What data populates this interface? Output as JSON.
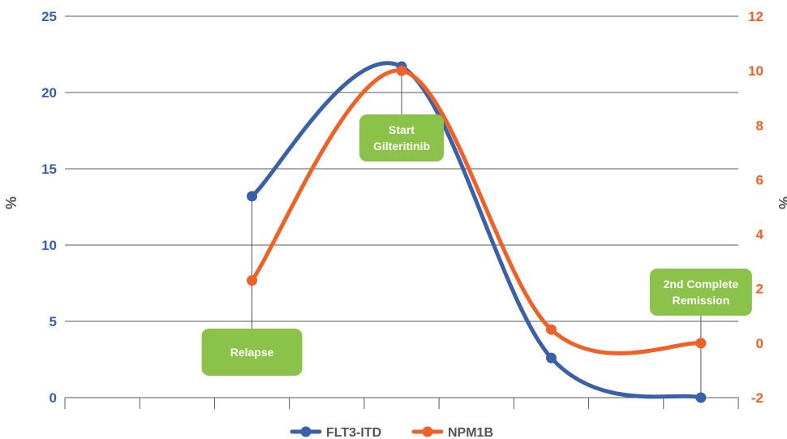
{
  "chart_data": {
    "type": "line",
    "x": [
      1,
      2,
      3,
      4,
      5,
      6,
      7,
      8,
      9
    ],
    "series": [
      {
        "name": "FLT3-ITD",
        "axis": "left",
        "color": "#3a60a8",
        "points": [
          [
            3,
            13.2
          ],
          [
            5,
            21.7
          ],
          [
            7,
            2.6
          ],
          [
            9,
            0.0
          ]
        ]
      },
      {
        "name": "NPM1B",
        "axis": "right",
        "color": "#ee6128",
        "points": [
          [
            3,
            2.3
          ],
          [
            5,
            10.0
          ],
          [
            7,
            0.5
          ],
          [
            9,
            0.0
          ]
        ]
      }
    ],
    "y_left": {
      "label": "%",
      "ylim": [
        0,
        25
      ],
      "ticks": [
        "0",
        "5",
        "10",
        "15",
        "20",
        "25"
      ],
      "color": "#3a60a8"
    },
    "y_right": {
      "label": "%",
      "ylim": [
        -2,
        12
      ],
      "ticks": [
        "-2",
        "0",
        "2",
        "4",
        "6",
        "8",
        "10",
        "12"
      ],
      "color": "#ee6128"
    },
    "grid": true,
    "legend_position": "bottom",
    "annotations": [
      {
        "id": "relapse",
        "lines": [
          "Relapse"
        ],
        "x": 3,
        "color": "#8bc34a"
      },
      {
        "id": "start-gilteritinib",
        "lines": [
          "Start",
          "Gilteritinib"
        ],
        "x": 5,
        "color": "#8bc34a"
      },
      {
        "id": "second-remission",
        "lines": [
          "2nd Complete",
          "Remission"
        ],
        "x": 9,
        "color": "#8bc34a"
      }
    ]
  }
}
